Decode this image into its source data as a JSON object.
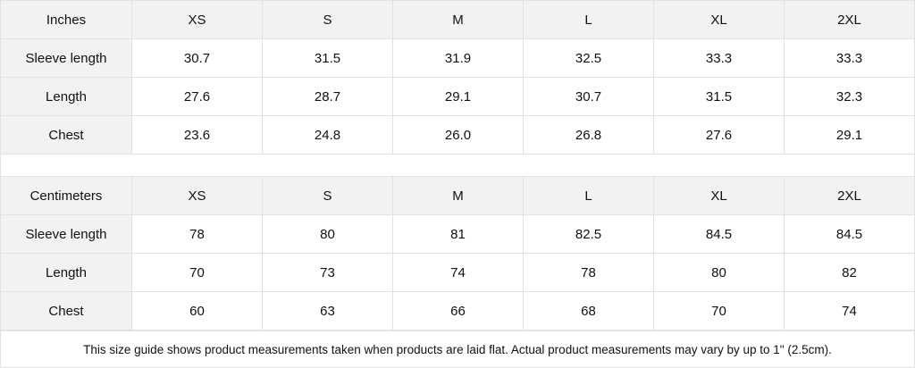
{
  "tables": [
    {
      "unit": "Inches",
      "sizes": [
        "XS",
        "S",
        "M",
        "L",
        "XL",
        "2XL"
      ],
      "rows": [
        {
          "label": "Sleeve length",
          "values": [
            "30.7",
            "31.5",
            "31.9",
            "32.5",
            "33.3",
            "33.3"
          ]
        },
        {
          "label": "Length",
          "values": [
            "27.6",
            "28.7",
            "29.1",
            "30.7",
            "31.5",
            "32.3"
          ]
        },
        {
          "label": "Chest",
          "values": [
            "23.6",
            "24.8",
            "26.0",
            "26.8",
            "27.6",
            "29.1"
          ]
        }
      ]
    },
    {
      "unit": "Centimeters",
      "sizes": [
        "XS",
        "S",
        "M",
        "L",
        "XL",
        "2XL"
      ],
      "rows": [
        {
          "label": "Sleeve length",
          "values": [
            "78",
            "80",
            "81",
            "82.5",
            "84.5",
            "84.5"
          ]
        },
        {
          "label": "Length",
          "values": [
            "70",
            "73",
            "74",
            "78",
            "80",
            "82"
          ]
        },
        {
          "label": "Chest",
          "values": [
            "60",
            "63",
            "66",
            "68",
            "70",
            "74"
          ]
        }
      ]
    }
  ],
  "note": "This size guide shows product measurements taken when products are laid flat.  Actual product measurements may vary by up to 1\" (2.5cm).",
  "colors": {
    "header_bg": "#f2f2f2",
    "border": "#e2e2e2"
  }
}
